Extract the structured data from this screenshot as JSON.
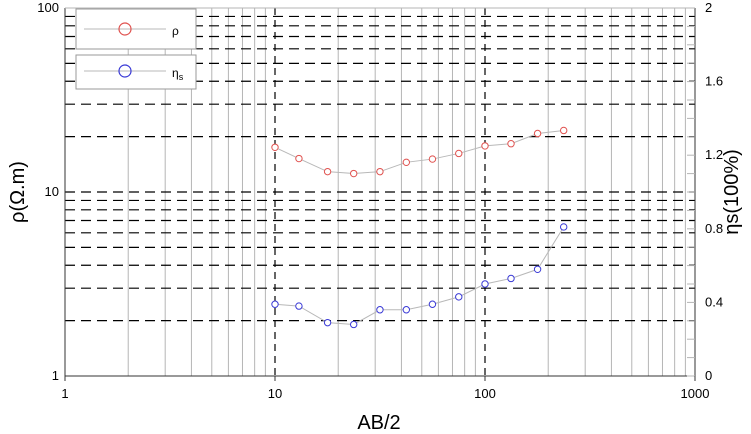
{
  "chart_data": {
    "type": "scatter",
    "xscale": "log",
    "yscale": "log",
    "xlim": [
      1,
      1000
    ],
    "ylim": [
      1,
      100
    ],
    "y2lim": [
      0,
      2
    ],
    "xlabel": "AB/2",
    "ylabel": "ρ(Ω.m)",
    "y2label": "ηs(100%)",
    "x_ticks": [
      "1",
      "10",
      "100",
      "1000"
    ],
    "y_ticks": [
      "1",
      "10",
      "100"
    ],
    "y2_ticks": [
      "0",
      "0.4",
      "0.8",
      "1.2",
      "1.6",
      "2"
    ],
    "grid": true,
    "legend_position": "top-left",
    "legend": {
      "rho_label": "ρ",
      "eta_label": "η",
      "eta_sub": "s"
    },
    "colors": {
      "rho": "#e0524f",
      "eta": "#3a3ad6",
      "line": "#b8b8b8"
    },
    "series": [
      {
        "name": "ρ",
        "axis": "left",
        "x": [
          10,
          13,
          17.8,
          23.7,
          31.6,
          42.2,
          56.2,
          75,
          100,
          133,
          178,
          237
        ],
        "values": [
          17.5,
          15.2,
          12.9,
          12.6,
          12.9,
          14.5,
          15.1,
          16.2,
          17.8,
          18.3,
          20.8,
          21.6
        ]
      },
      {
        "name": "ηs",
        "axis": "right",
        "x": [
          10,
          13,
          17.8,
          23.7,
          31.6,
          42.2,
          56.2,
          75,
          100,
          133,
          178,
          237
        ],
        "values": [
          0.39,
          0.38,
          0.29,
          0.28,
          0.36,
          0.36,
          0.39,
          0.43,
          0.5,
          0.53,
          0.58,
          0.81
        ]
      }
    ]
  }
}
